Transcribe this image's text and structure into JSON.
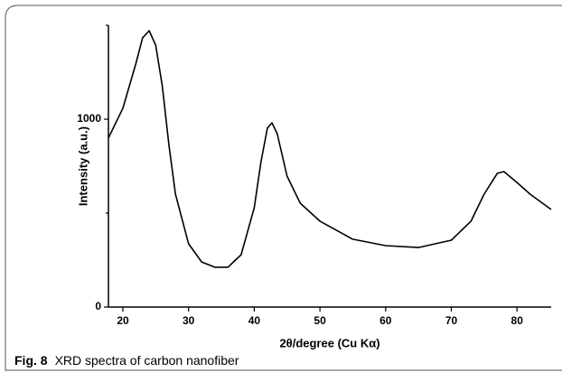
{
  "chart_data": {
    "type": "line",
    "xlabel": "2θ/degree (Cu Kα)",
    "ylabel": "Intensity (a.u.)",
    "x": [
      17.8,
      20,
      22,
      23,
      24,
      25,
      26,
      27,
      28,
      30,
      32,
      34,
      36,
      38,
      40,
      41,
      42,
      42.7,
      43.5,
      45,
      47,
      50,
      55,
      60,
      65,
      70,
      73,
      75,
      77,
      78,
      80,
      82,
      85.2
    ],
    "series": [
      {
        "color": "#000000",
        "values": [
          900,
          1058,
          1298,
          1433,
          1471,
          1394,
          1178,
          865,
          601,
          337,
          240,
          212,
          212,
          279,
          529,
          769,
          952,
          981,
          923,
          697,
          553,
          457,
          361,
          327,
          317,
          356,
          457,
          601,
          712,
          721,
          663,
          601,
          519
        ]
      }
    ],
    "xlim": [
      17.8,
      85.2
    ],
    "xticks": [
      20,
      30,
      40,
      50,
      60,
      70,
      80
    ],
    "ylim": [
      0,
      1500
    ],
    "yticks": [
      0,
      1000
    ],
    "yminorticks": [
      500,
      1500
    ],
    "grid": false
  },
  "caption": {
    "label": "Fig. 8",
    "text": "XRD spectra of carbon nanofiber"
  }
}
